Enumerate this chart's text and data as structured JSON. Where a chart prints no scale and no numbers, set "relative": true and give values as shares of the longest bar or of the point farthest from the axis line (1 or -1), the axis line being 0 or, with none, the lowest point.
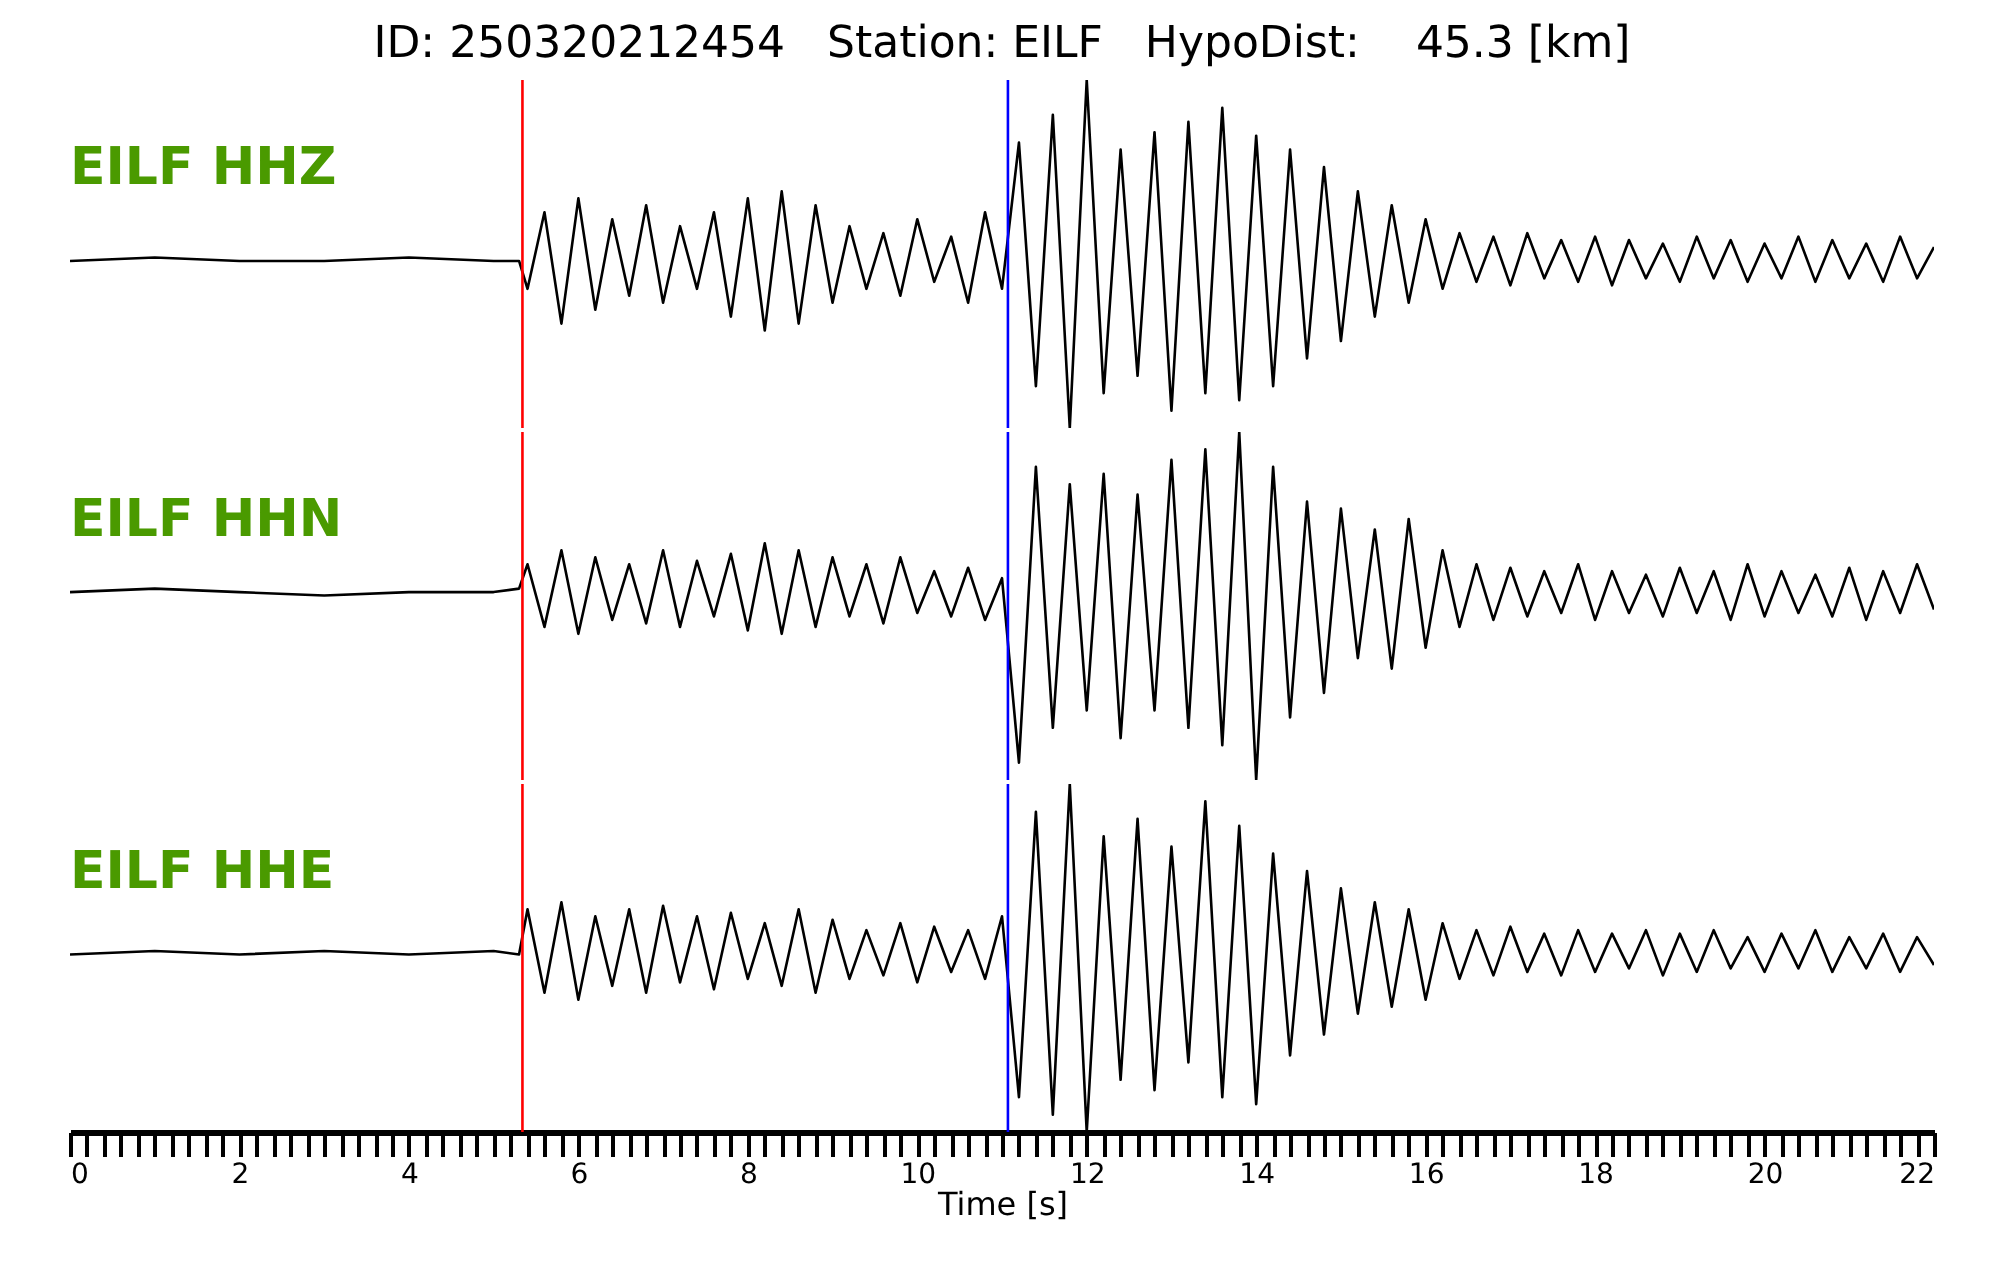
{
  "chart_data": [
    {
      "type": "line",
      "relative": true,
      "title": "ID: 250320212454   Station: EILF   HypoDist:    45.3 [km]",
      "tick_labels": false,
      "xlim": [
        0,
        22
      ],
      "x": [
        0,
        1,
        2,
        3,
        4,
        5,
        5.3,
        5.4,
        5.6,
        5.8,
        6.0,
        6.2,
        6.4,
        6.6,
        6.8,
        7.0,
        7.2,
        7.4,
        7.6,
        7.8,
        8.0,
        8.2,
        8.4,
        8.6,
        8.8,
        9.0,
        9.2,
        9.4,
        9.6,
        9.8,
        10.0,
        10.2,
        10.4,
        10.6,
        10.8,
        11.0,
        11.2,
        11.4,
        11.6,
        11.8,
        12.0,
        12.2,
        12.4,
        12.6,
        12.8,
        13.0,
        13.2,
        13.4,
        13.6,
        13.8,
        14.0,
        14.2,
        14.4,
        14.6,
        14.8,
        15.0,
        15.2,
        15.4,
        15.6,
        15.8,
        16.0,
        16.2,
        16.4,
        16.6,
        16.8,
        17.0,
        17.2,
        17.4,
        17.6,
        17.8,
        18.0,
        18.2,
        18.4,
        18.6,
        18.8,
        19.0,
        19.2,
        19.4,
        19.6,
        19.8,
        20.0,
        20.2,
        20.4,
        20.6,
        20.8,
        21.0,
        21.2,
        21.4,
        21.6,
        21.8,
        22.0
      ],
      "series": [
        {
          "name": "EILF HHZ",
          "color": "#000000",
          "values": [
            0.48,
            0.49,
            0.48,
            0.48,
            0.49,
            0.48,
            0.48,
            0.4,
            0.62,
            0.3,
            0.66,
            0.34,
            0.6,
            0.38,
            0.64,
            0.36,
            0.58,
            0.4,
            0.62,
            0.32,
            0.66,
            0.28,
            0.68,
            0.3,
            0.64,
            0.36,
            0.58,
            0.4,
            0.56,
            0.38,
            0.6,
            0.42,
            0.55,
            0.36,
            0.62,
            0.4,
            0.82,
            0.12,
            0.9,
            0.0,
            1.0,
            0.1,
            0.8,
            0.15,
            0.85,
            0.05,
            0.88,
            0.1,
            0.92,
            0.08,
            0.84,
            0.12,
            0.8,
            0.2,
            0.75,
            0.25,
            0.68,
            0.32,
            0.64,
            0.36,
            0.6,
            0.4,
            0.56,
            0.42,
            0.55,
            0.41,
            0.56,
            0.43,
            0.54,
            0.42,
            0.55,
            0.41,
            0.54,
            0.43,
            0.53,
            0.42,
            0.55,
            0.43,
            0.54,
            0.42,
            0.53,
            0.43,
            0.55,
            0.42,
            0.54,
            0.43,
            0.53,
            0.42,
            0.55,
            0.43,
            0.52
          ]
        }
      ],
      "ref_lines": [
        {
          "axis": "x",
          "value": 5.34,
          "color": "#ff0000"
        },
        {
          "axis": "x",
          "value": 11.07,
          "color": "#0000ff"
        }
      ]
    },
    {
      "type": "line",
      "relative": true,
      "tick_labels": false,
      "xlim": [
        0,
        22
      ],
      "x": [
        0,
        1,
        2,
        3,
        4,
        5,
        5.3,
        5.4,
        5.6,
        5.8,
        6.0,
        6.2,
        6.4,
        6.6,
        6.8,
        7.0,
        7.2,
        7.4,
        7.6,
        7.8,
        8.0,
        8.2,
        8.4,
        8.6,
        8.8,
        9.0,
        9.2,
        9.4,
        9.6,
        9.8,
        10.0,
        10.2,
        10.4,
        10.6,
        10.8,
        11.0,
        11.2,
        11.4,
        11.6,
        11.8,
        12.0,
        12.2,
        12.4,
        12.6,
        12.8,
        13.0,
        13.2,
        13.4,
        13.6,
        13.8,
        14.0,
        14.2,
        14.4,
        14.6,
        14.8,
        15.0,
        15.2,
        15.4,
        15.6,
        15.8,
        16.0,
        16.2,
        16.4,
        16.6,
        16.8,
        17.0,
        17.2,
        17.4,
        17.6,
        17.8,
        18.0,
        18.2,
        18.4,
        18.6,
        18.8,
        19.0,
        19.2,
        19.4,
        19.6,
        19.8,
        20.0,
        20.2,
        20.4,
        20.6,
        20.8,
        21.0,
        21.2,
        21.4,
        21.6,
        21.8,
        22.0
      ],
      "series": [
        {
          "name": "EILF HHN",
          "color": "#000000",
          "values": [
            0.54,
            0.55,
            0.54,
            0.53,
            0.54,
            0.54,
            0.55,
            0.62,
            0.44,
            0.66,
            0.42,
            0.64,
            0.46,
            0.62,
            0.45,
            0.66,
            0.44,
            0.63,
            0.47,
            0.65,
            0.43,
            0.68,
            0.42,
            0.66,
            0.44,
            0.64,
            0.47,
            0.62,
            0.45,
            0.64,
            0.48,
            0.6,
            0.47,
            0.61,
            0.46,
            0.58,
            0.05,
            0.9,
            0.15,
            0.85,
            0.2,
            0.88,
            0.12,
            0.82,
            0.2,
            0.92,
            0.15,
            0.95,
            0.1,
            1.0,
            0.0,
            0.9,
            0.18,
            0.8,
            0.25,
            0.78,
            0.35,
            0.72,
            0.32,
            0.75,
            0.38,
            0.66,
            0.44,
            0.62,
            0.46,
            0.61,
            0.47,
            0.6,
            0.48,
            0.62,
            0.46,
            0.6,
            0.48,
            0.59,
            0.47,
            0.61,
            0.48,
            0.6,
            0.46,
            0.62,
            0.47,
            0.6,
            0.48,
            0.59,
            0.47,
            0.61,
            0.46,
            0.6,
            0.48,
            0.62,
            0.49
          ]
        }
      ],
      "ref_lines": [
        {
          "axis": "x",
          "value": 5.34,
          "color": "#ff0000"
        },
        {
          "axis": "x",
          "value": 11.07,
          "color": "#0000ff"
        }
      ]
    },
    {
      "type": "line",
      "relative": true,
      "tick_labels": "x",
      "xlabel": "Time [s]",
      "xlim": [
        0,
        22
      ],
      "xticks": [
        0,
        {
          "value": 0.2,
          "label": null
        },
        {
          "value": 0.4,
          "label": null
        },
        {
          "value": 0.6,
          "label": null
        },
        {
          "value": 0.8,
          "label": null
        },
        {
          "value": 1,
          "label": null
        },
        {
          "value": 1.2,
          "label": null
        },
        {
          "value": 1.4,
          "label": null
        },
        {
          "value": 1.6,
          "label": null
        },
        {
          "value": 1.8,
          "label": null
        },
        2,
        {
          "value": 2.2,
          "label": null
        },
        {
          "value": 2.4,
          "label": null
        },
        {
          "value": 2.6,
          "label": null
        },
        {
          "value": 2.8,
          "label": null
        },
        {
          "value": 3,
          "label": null
        },
        {
          "value": 3.2,
          "label": null
        },
        {
          "value": 3.4,
          "label": null
        },
        {
          "value": 3.6,
          "label": null
        },
        {
          "value": 3.8,
          "label": null
        },
        4,
        {
          "value": 4.2,
          "label": null
        },
        {
          "value": 4.4,
          "label": null
        },
        {
          "value": 4.6,
          "label": null
        },
        {
          "value": 4.8,
          "label": null
        },
        {
          "value": 5,
          "label": null
        },
        {
          "value": 5.2,
          "label": null
        },
        {
          "value": 5.4,
          "label": null
        },
        {
          "value": 5.6,
          "label": null
        },
        {
          "value": 5.8,
          "label": null
        },
        6,
        {
          "value": 6.2,
          "label": null
        },
        {
          "value": 6.4,
          "label": null
        },
        {
          "value": 6.6,
          "label": null
        },
        {
          "value": 6.8,
          "label": null
        },
        {
          "value": 7,
          "label": null
        },
        {
          "value": 7.2,
          "label": null
        },
        {
          "value": 7.4,
          "label": null
        },
        {
          "value": 7.6,
          "label": null
        },
        {
          "value": 7.8,
          "label": null
        },
        8,
        {
          "value": 8.2,
          "label": null
        },
        {
          "value": 8.4,
          "label": null
        },
        {
          "value": 8.6,
          "label": null
        },
        {
          "value": 8.8,
          "label": null
        },
        {
          "value": 9,
          "label": null
        },
        {
          "value": 9.2,
          "label": null
        },
        {
          "value": 9.4,
          "label": null
        },
        {
          "value": 9.6,
          "label": null
        },
        {
          "value": 9.8,
          "label": null
        },
        10,
        {
          "value": 10.2,
          "label": null
        },
        {
          "value": 10.4,
          "label": null
        },
        {
          "value": 10.6,
          "label": null
        },
        {
          "value": 10.8,
          "label": null
        },
        {
          "value": 11,
          "label": null
        },
        {
          "value": 11.2,
          "label": null
        },
        {
          "value": 11.4,
          "label": null
        },
        {
          "value": 11.6,
          "label": null
        },
        {
          "value": 11.8,
          "label": null
        },
        12,
        {
          "value": 12.2,
          "label": null
        },
        {
          "value": 12.4,
          "label": null
        },
        {
          "value": 12.6,
          "label": null
        },
        {
          "value": 12.8,
          "label": null
        },
        {
          "value": 13,
          "label": null
        },
        {
          "value": 13.2,
          "label": null
        },
        {
          "value": 13.4,
          "label": null
        },
        {
          "value": 13.6,
          "label": null
        },
        {
          "value": 13.8,
          "label": null
        },
        14,
        {
          "value": 14.2,
          "label": null
        },
        {
          "value": 14.4,
          "label": null
        },
        {
          "value": 14.6,
          "label": null
        },
        {
          "value": 14.8,
          "label": null
        },
        {
          "value": 15,
          "label": null
        },
        {
          "value": 15.2,
          "label": null
        },
        {
          "value": 15.4,
          "label": null
        },
        {
          "value": 15.6,
          "label": null
        },
        {
          "value": 15.8,
          "label": null
        },
        16,
        {
          "value": 16.2,
          "label": null
        },
        {
          "value": 16.4,
          "label": null
        },
        {
          "value": 16.6,
          "label": null
        },
        {
          "value": 16.8,
          "label": null
        },
        {
          "value": 17,
          "label": null
        },
        {
          "value": 17.2,
          "label": null
        },
        {
          "value": 17.4,
          "label": null
        },
        {
          "value": 17.6,
          "label": null
        },
        {
          "value": 17.8,
          "label": null
        },
        18,
        {
          "value": 18.2,
          "label": null
        },
        {
          "value": 18.4,
          "label": null
        },
        {
          "value": 18.6,
          "label": null
        },
        {
          "value": 18.8,
          "label": null
        },
        {
          "value": 19,
          "label": null
        },
        {
          "value": 19.2,
          "label": null
        },
        {
          "value": 19.4,
          "label": null
        },
        {
          "value": 19.6,
          "label": null
        },
        {
          "value": 19.8,
          "label": null
        },
        20,
        {
          "value": 20.2,
          "label": null
        },
        {
          "value": 20.4,
          "label": null
        },
        {
          "value": 20.6,
          "label": null
        },
        {
          "value": 20.8,
          "label": null
        },
        {
          "value": 21,
          "label": null
        },
        {
          "value": 21.2,
          "label": null
        },
        {
          "value": 21.4,
          "label": null
        },
        {
          "value": 21.6,
          "label": null
        },
        {
          "value": 21.8,
          "label": null
        },
        22
      ],
      "x": [
        0,
        1,
        2,
        3,
        4,
        5,
        5.3,
        5.4,
        5.6,
        5.8,
        6.0,
        6.2,
        6.4,
        6.6,
        6.8,
        7.0,
        7.2,
        7.4,
        7.6,
        7.8,
        8.0,
        8.2,
        8.4,
        8.6,
        8.8,
        9.0,
        9.2,
        9.4,
        9.6,
        9.8,
        10.0,
        10.2,
        10.4,
        10.6,
        10.8,
        11.0,
        11.2,
        11.4,
        11.6,
        11.8,
        12.0,
        12.2,
        12.4,
        12.6,
        12.8,
        13.0,
        13.2,
        13.4,
        13.6,
        13.8,
        14.0,
        14.2,
        14.4,
        14.6,
        14.8,
        15.0,
        15.2,
        15.4,
        15.6,
        15.8,
        16.0,
        16.2,
        16.4,
        16.6,
        16.8,
        17.0,
        17.2,
        17.4,
        17.6,
        17.8,
        18.0,
        18.2,
        18.4,
        18.6,
        18.8,
        19.0,
        19.2,
        19.4,
        19.6,
        19.8,
        20.0,
        20.2,
        20.4,
        20.6,
        20.8,
        21.0,
        21.2,
        21.4,
        21.6,
        21.8,
        22.0
      ],
      "series": [
        {
          "name": "EILF HHE",
          "color": "#000000",
          "values": [
            0.51,
            0.52,
            0.51,
            0.52,
            0.51,
            0.52,
            0.51,
            0.64,
            0.4,
            0.66,
            0.38,
            0.62,
            0.42,
            0.64,
            0.4,
            0.65,
            0.43,
            0.62,
            0.41,
            0.63,
            0.44,
            0.6,
            0.42,
            0.64,
            0.4,
            0.61,
            0.44,
            0.58,
            0.45,
            0.6,
            0.43,
            0.59,
            0.46,
            0.58,
            0.44,
            0.62,
            0.1,
            0.92,
            0.05,
            1.0,
            0.0,
            0.85,
            0.15,
            0.9,
            0.12,
            0.82,
            0.2,
            0.95,
            0.1,
            0.88,
            0.08,
            0.8,
            0.22,
            0.75,
            0.28,
            0.7,
            0.34,
            0.66,
            0.36,
            0.64,
            0.38,
            0.6,
            0.44,
            0.58,
            0.45,
            0.59,
            0.46,
            0.57,
            0.45,
            0.58,
            0.46,
            0.57,
            0.47,
            0.58,
            0.45,
            0.57,
            0.46,
            0.58,
            0.47,
            0.56,
            0.46,
            0.57,
            0.47,
            0.58,
            0.46,
            0.56,
            0.47,
            0.57,
            0.46,
            0.56,
            0.48
          ]
        }
      ],
      "ref_lines": [
        {
          "axis": "x",
          "value": 5.34,
          "color": "#ff0000"
        },
        {
          "axis": "x",
          "value": 11.07,
          "color": "#0000ff"
        }
      ]
    }
  ]
}
